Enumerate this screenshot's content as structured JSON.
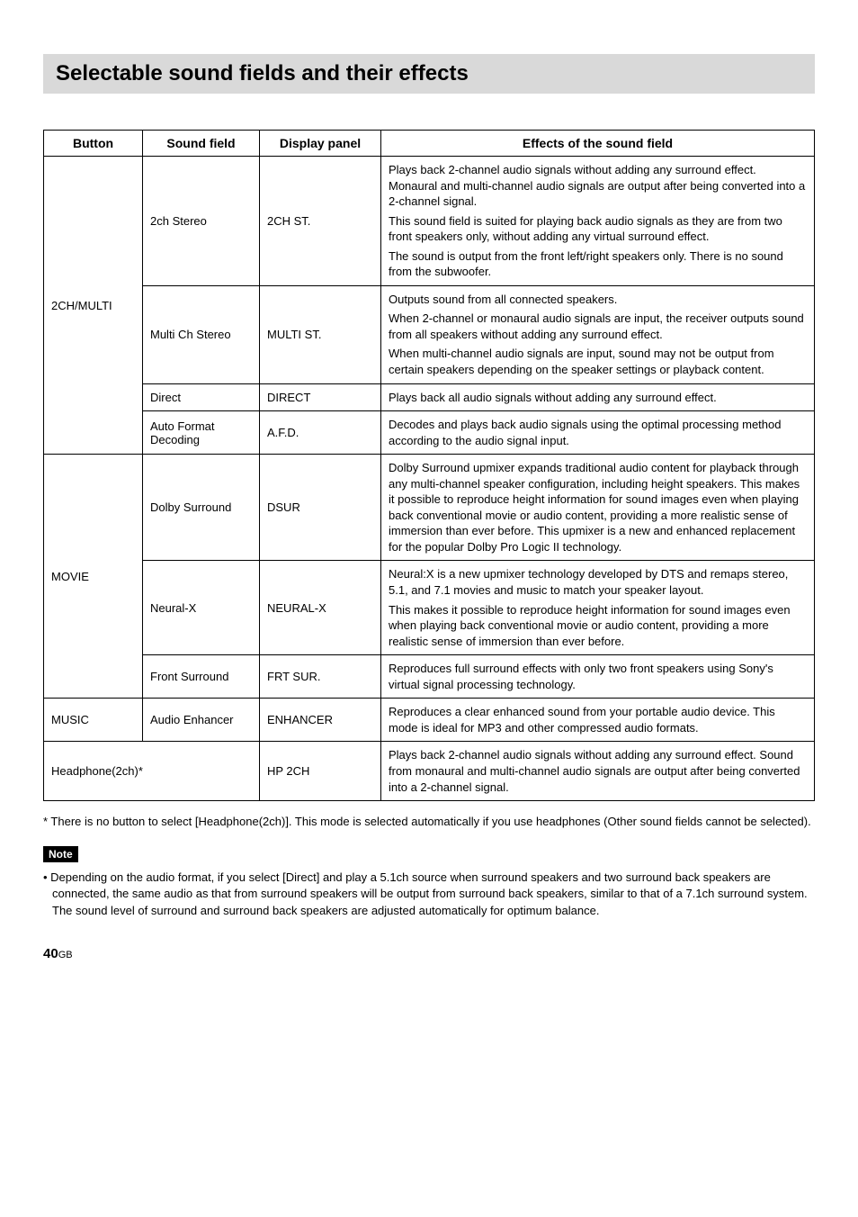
{
  "title": "Selectable sound fields and their effects",
  "headers": {
    "button": "Button",
    "sound_field": "Sound field",
    "display_panel": "Display panel",
    "effects": "Effects of the sound field"
  },
  "groups": [
    {
      "button": "2CH/MULTI",
      "rows": [
        {
          "sound_field": "2ch Stereo",
          "display": "2CH ST.",
          "effects": [
            "Plays back 2-channel audio signals without adding any surround effect. Monaural and multi-channel audio signals are output after being converted into a 2-channel signal.",
            "This sound field is suited for playing back audio signals as they are from two front speakers only, without adding any virtual surround effect.",
            "The sound is output from the front left/right speakers only. There is no sound from the subwoofer."
          ]
        },
        {
          "sound_field": "Multi Ch Stereo",
          "display": "MULTI ST.",
          "effects": [
            "Outputs sound from all connected speakers.",
            "When 2-channel or monaural audio signals are input, the receiver outputs sound from all speakers without adding any surround effect.",
            "When multi-channel audio signals are input, sound may not be output from certain speakers depending on the speaker settings or playback content."
          ]
        },
        {
          "sound_field": "Direct",
          "display": "DIRECT",
          "effects": [
            "Plays back all audio signals without adding any surround effect."
          ]
        },
        {
          "sound_field": "Auto Format Decoding",
          "display": "A.F.D.",
          "effects": [
            "Decodes and plays back audio signals using the optimal processing method according to the audio signal input."
          ]
        }
      ]
    },
    {
      "button": "MOVIE",
      "rows": [
        {
          "sound_field": "Dolby Surround",
          "display": "DSUR",
          "effects": [
            "Dolby Surround upmixer expands traditional audio content for playback through any multi-channel speaker configuration, including height speakers. This makes it possible to reproduce height information for sound images even when playing back conventional movie or audio content, providing a more realistic sense of immersion than ever before. This upmixer is a new and enhanced replacement for the popular Dolby Pro Logic II technology."
          ]
        },
        {
          "sound_field": "Neural-X",
          "display": "NEURAL-X",
          "effects": [
            "Neural:X is a new upmixer technology developed by DTS and remaps stereo, 5.1, and 7.1 movies and music to match your speaker layout.",
            "This makes it possible to reproduce height information for sound images even when playing back conventional movie or audio content, providing a more realistic sense of immersion than ever before."
          ]
        },
        {
          "sound_field": "Front Surround",
          "display": "FRT SUR.",
          "effects": [
            "Reproduces full surround effects with only two front speakers using Sony's virtual signal processing technology."
          ]
        }
      ]
    },
    {
      "button": "MUSIC",
      "rows": [
        {
          "sound_field": "Audio Enhancer",
          "display": "ENHANCER",
          "effects": [
            "Reproduces a clear enhanced sound from your portable audio device. This mode is ideal for MP3 and other compressed audio formats."
          ]
        }
      ]
    }
  ],
  "headphone_row": {
    "label": "Headphone(2ch)*",
    "display": "HP 2CH",
    "effects": [
      "Plays back 2-channel audio signals without adding any surround effect. Sound from monaural and multi-channel audio signals are output after being converted into a 2-channel signal."
    ]
  },
  "footnote": "* There is no button to select [Headphone(2ch)]. This mode is selected automatically if you use headphones (Other sound fields cannot be selected).",
  "note_label": "Note",
  "note_text": "• Depending on the audio format, if you select [Direct] and play a 5.1ch source when surround speakers and two surround back speakers are connected, the same audio as that from surround speakers will be output from surround back speakers, similar to that of a 7.1ch surround system. The sound level of surround and surround back speakers are adjusted automatically for optimum balance.",
  "page_number": "40",
  "page_suffix": "GB",
  "colors": {
    "banner_bg": "#d9d9d9",
    "border": "#000000",
    "note_bg": "#000000",
    "note_fg": "#ffffff"
  }
}
